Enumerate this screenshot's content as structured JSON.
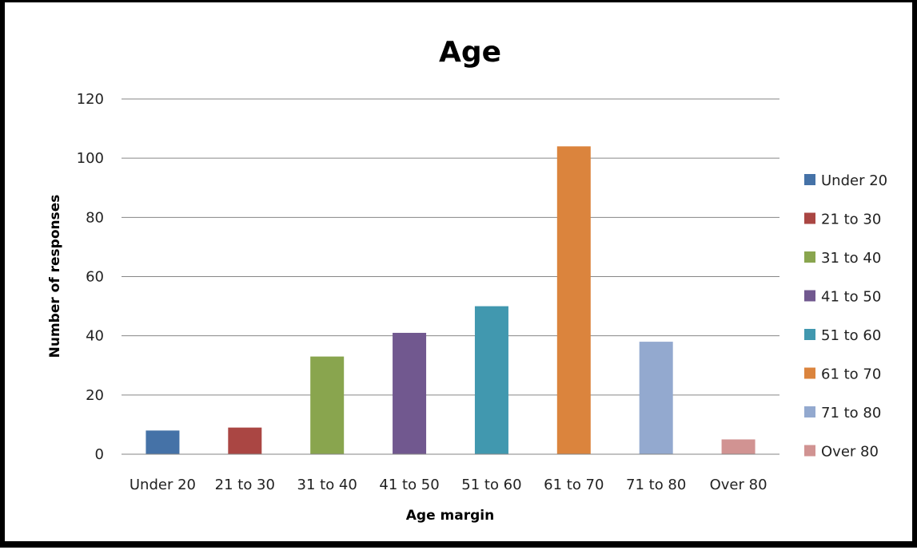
{
  "chart_data": {
    "type": "bar",
    "title": "Age",
    "xlabel": "Age margin",
    "ylabel": "Number of responses",
    "categories": [
      "Under 20",
      "21 to 30",
      "31 to 40",
      "41 to 50",
      "51 to 60",
      "61 to 70",
      "71 to 80",
      "Over 80"
    ],
    "values": [
      8,
      9,
      33,
      41,
      50,
      104,
      38,
      5
    ],
    "colors": [
      "#4572A7",
      "#AA4643",
      "#89A54E",
      "#71588F",
      "#4198AF",
      "#DB843D",
      "#93A9CF",
      "#D19392"
    ],
    "ylim": [
      0,
      120
    ],
    "yticks": [
      0,
      20,
      40,
      60,
      80,
      100,
      120
    ],
    "grid": true,
    "legend_position": "right",
    "legend": [
      "Under 20",
      "21 to 30",
      "31 to 40",
      "41 to 50",
      "51 to 60",
      "61 to 70",
      "71 to 80",
      "Over 80"
    ]
  }
}
